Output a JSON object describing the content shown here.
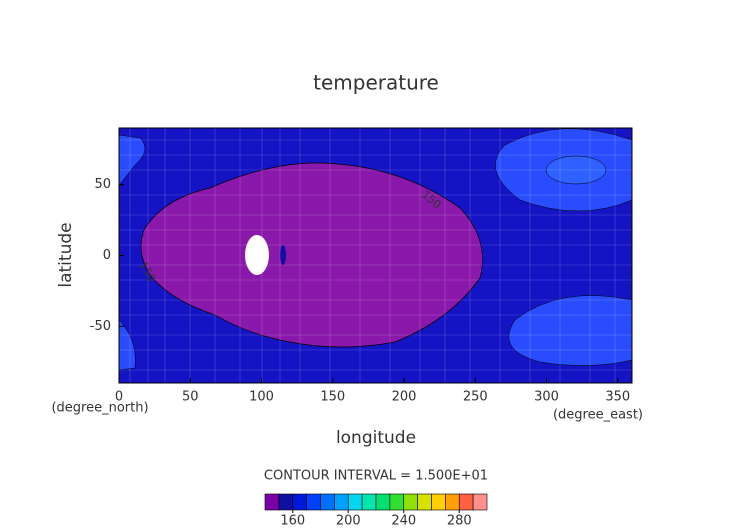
{
  "chart_data": {
    "type": "contour",
    "title": "temperature",
    "x_label": "longitude",
    "y_label": "latitude",
    "x_unit": "(degree_east)",
    "y_unit": "(degree_north)",
    "xlim": [
      0,
      360
    ],
    "xticks": [
      0,
      50,
      100,
      150,
      200,
      250,
      300,
      350
    ],
    "ylim": [
      -90,
      90
    ],
    "yticks": [
      -50,
      0,
      50
    ],
    "contour_labels": [
      "150",
      "150"
    ],
    "contour_interval": "CONTOUR INTERVAL = 1.500E+01",
    "colorbar": {
      "lim": [
        140,
        300
      ],
      "ticks": [
        160,
        200,
        240,
        280
      ],
      "colors": [
        "#7a00a8",
        "#1010a0",
        "#0018d8",
        "#0040ff",
        "#0070ff",
        "#00a0ff",
        "#00d8f0",
        "#00e8b0",
        "#00e070",
        "#30e030",
        "#90e000",
        "#d8e000",
        "#ffd000",
        "#ffa000",
        "#ff6040",
        "#ff9090"
      ]
    }
  }
}
